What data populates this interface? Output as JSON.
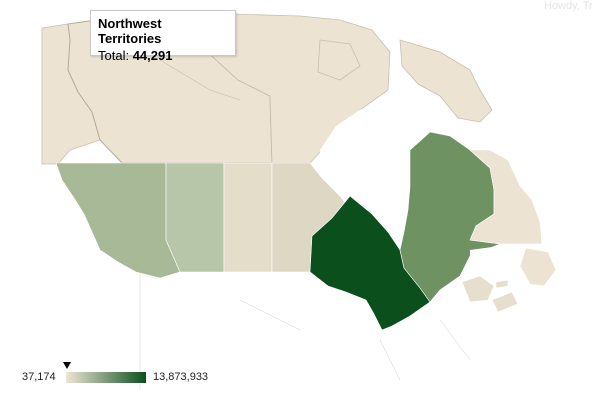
{
  "header": {
    "faint_text": "Howdy, Tr"
  },
  "tooltip": {
    "title": "Northwest Territories",
    "total_label": "Total:",
    "total_value": "44,291"
  },
  "legend": {
    "min": "37,174",
    "max": "13,873,933",
    "color_low": "#efe6d6",
    "color_high": "#0b4f1d"
  },
  "regions": [
    {
      "name": "Yukon",
      "color": "#ece3d3"
    },
    {
      "name": "Northwest Territories",
      "color": "#ece3d3"
    },
    {
      "name": "Nunavut",
      "color": "#ece3d3"
    },
    {
      "name": "British Columbia",
      "color": "#a8b998"
    },
    {
      "name": "Alberta",
      "color": "#b7c5a8"
    },
    {
      "name": "Saskatchewan",
      "color": "#e4ddc9"
    },
    {
      "name": "Manitoba",
      "color": "#ddd7c3"
    },
    {
      "name": "Ontario",
      "color": "#0b4f1d"
    },
    {
      "name": "Quebec",
      "color": "#6f9262"
    },
    {
      "name": "Newfoundland and Labrador",
      "color": "#ece3d3"
    },
    {
      "name": "New Brunswick",
      "color": "#e7dfcd"
    },
    {
      "name": "Nova Scotia",
      "color": "#e7dfcd"
    },
    {
      "name": "Prince Edward Island",
      "color": "#e7dfcd"
    }
  ]
}
